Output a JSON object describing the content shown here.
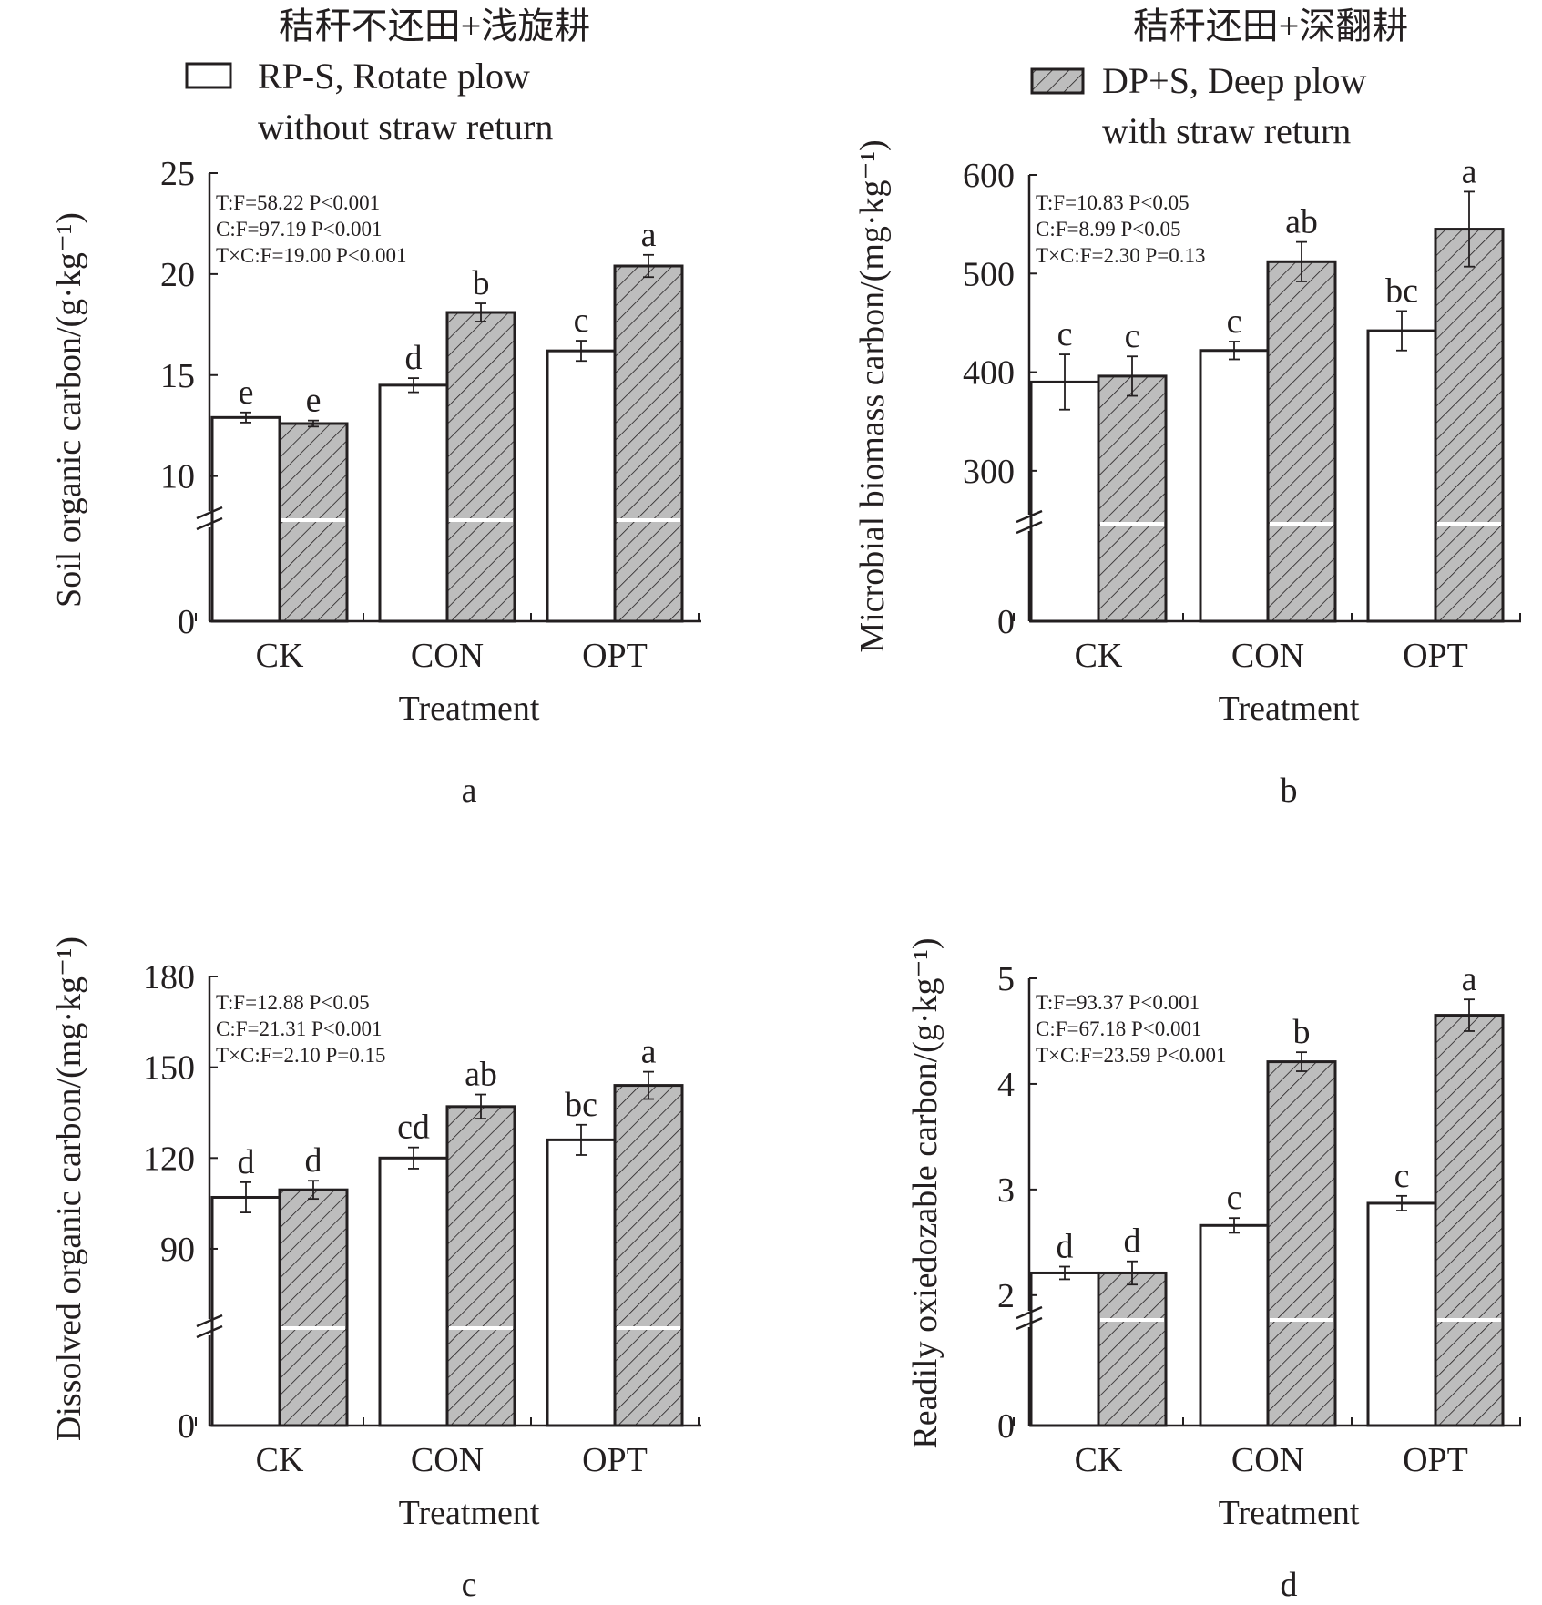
{
  "legend": {
    "items": [
      {
        "label_cn": "秸秆不还田+浅旋耕",
        "line1": "RP-S, Rotate plow",
        "line2": "without straw return",
        "fill": "white"
      },
      {
        "label_cn": "秸秆还田+深翻耕",
        "line1": "DP+S, Deep plow",
        "line2": "with straw return",
        "fill": "hatched-gray"
      }
    ]
  },
  "colors": {
    "axis": "#231f20",
    "hatched_fill": "#bdbdbd",
    "plain_fill": "#ffffff",
    "break_mark": "#ffffff"
  },
  "chart_data": [
    {
      "panel": "a",
      "type": "bar",
      "xlabel": "Treatment",
      "ylabel": "Soil organic carbon/(g·kg⁻¹)",
      "categories": [
        "CK",
        "CON",
        "OPT"
      ],
      "broken_axis": {
        "break_value": 8
      },
      "ylim": [
        0,
        25
      ],
      "yticks": [
        0,
        10,
        15,
        20,
        25
      ],
      "series": [
        {
          "name": "RP-S",
          "values": [
            12.9,
            14.5,
            16.2
          ],
          "errors": [
            0.25,
            0.35,
            0.5
          ],
          "letters": [
            "e",
            "d",
            "c"
          ]
        },
        {
          "name": "DP+S",
          "values": [
            12.6,
            18.1,
            20.4
          ],
          "errors": [
            0.15,
            0.45,
            0.55
          ],
          "letters": [
            "e",
            "b",
            "a"
          ]
        }
      ],
      "stats": [
        "T:F=58.22 P<0.001",
        "C:F=97.19 P<0.001",
        "T×C:F=19.00 P<0.001"
      ]
    },
    {
      "panel": "b",
      "type": "bar",
      "xlabel": "Treatment",
      "ylabel": "Microbial biomass carbon/(mg·kg⁻¹)",
      "categories": [
        "CK",
        "CON",
        "OPT"
      ],
      "broken_axis": {
        "break_value": 250
      },
      "ylim": [
        0,
        600
      ],
      "yticks": [
        0,
        300,
        400,
        500,
        600
      ],
      "series": [
        {
          "name": "RP-S",
          "values": [
            390,
            422,
            442
          ],
          "errors": [
            28,
            9,
            20
          ],
          "letters": [
            "c",
            "c",
            "bc"
          ]
        },
        {
          "name": "DP+S",
          "values": [
            396,
            512,
            545
          ],
          "errors": [
            20,
            20,
            38
          ],
          "letters": [
            "c",
            "ab",
            "a"
          ]
        }
      ],
      "stats": [
        "T:F=10.83 P<0.05",
        "C:F=8.99 P<0.05",
        "T×C:F=2.30 P=0.13"
      ]
    },
    {
      "panel": "c",
      "type": "bar",
      "xlabel": "Treatment",
      "ylabel": "Dissolved organic carbon/(mg·kg⁻¹)",
      "categories": [
        "CK",
        "CON",
        "OPT"
      ],
      "broken_axis": {
        "break_value": 65
      },
      "ylim": [
        0,
        180
      ],
      "yticks": [
        0,
        90,
        120,
        150,
        180
      ],
      "series": [
        {
          "name": "RP-S",
          "values": [
            107,
            120,
            126
          ],
          "errors": [
            5,
            3.5,
            5
          ],
          "letters": [
            "d",
            "cd",
            "bc"
          ]
        },
        {
          "name": "DP+S",
          "values": [
            109.5,
            137,
            144
          ],
          "errors": [
            3,
            4,
            4.5
          ],
          "letters": [
            "d",
            "ab",
            "a"
          ]
        }
      ],
      "stats": [
        "T:F=12.88 P<0.05",
        "C:F=21.31 P<0.001",
        "T×C:F=2.10 P=0.15"
      ]
    },
    {
      "panel": "d",
      "type": "bar",
      "xlabel": "Treatment",
      "ylabel": "Readily oxiedozable carbon/(g·kg⁻¹)",
      "categories": [
        "CK",
        "CON",
        "OPT"
      ],
      "broken_axis": {
        "break_value": 1.8
      },
      "ylim": [
        0,
        5
      ],
      "yticks": [
        0,
        2,
        3,
        4,
        5
      ],
      "series": [
        {
          "name": "RP-S",
          "values": [
            2.21,
            2.66,
            2.87
          ],
          "errors": [
            0.06,
            0.07,
            0.07
          ],
          "letters": [
            "d",
            "c",
            "c"
          ]
        },
        {
          "name": "DP+S",
          "values": [
            2.21,
            4.21,
            4.65
          ],
          "errors": [
            0.11,
            0.09,
            0.15
          ],
          "letters": [
            "d",
            "b",
            "a"
          ]
        }
      ],
      "stats": [
        "T:F=93.37 P<0.001",
        "C:F=67.18 P<0.001",
        "T×C:F=23.59 P<0.001"
      ]
    }
  ]
}
